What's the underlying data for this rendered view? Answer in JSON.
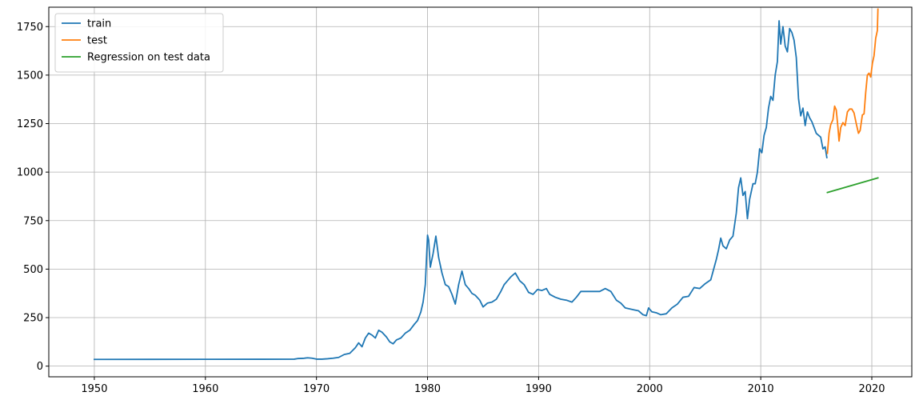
{
  "chart_data": {
    "type": "line",
    "title": "",
    "xlabel": "",
    "ylabel": "",
    "xlim": [
      1945.9,
      2023.6
    ],
    "ylim": [
      -55,
      1850
    ],
    "grid": true,
    "legend_position": "top-left",
    "x_ticks": [
      1950,
      1960,
      1970,
      1980,
      1990,
      2000,
      2010,
      2020
    ],
    "y_ticks": [
      0,
      250,
      500,
      750,
      1000,
      1250,
      1500,
      1750
    ],
    "series": [
      {
        "name": "train",
        "color": "#1f77b4",
        "points": [
          [
            1950.0,
            34.7
          ],
          [
            1955.0,
            35.0
          ],
          [
            1960.0,
            35.3
          ],
          [
            1965.0,
            35.5
          ],
          [
            1968.0,
            36.0
          ],
          [
            1968.3,
            39
          ],
          [
            1968.8,
            40
          ],
          [
            1969.2,
            43
          ],
          [
            1969.6,
            41
          ],
          [
            1970.0,
            36
          ],
          [
            1970.5,
            36
          ],
          [
            1971.0,
            38
          ],
          [
            1971.5,
            41
          ],
          [
            1972.0,
            45
          ],
          [
            1972.5,
            60
          ],
          [
            1973.0,
            66
          ],
          [
            1973.5,
            95
          ],
          [
            1973.8,
            120
          ],
          [
            1974.1,
            100
          ],
          [
            1974.4,
            145
          ],
          [
            1974.7,
            170
          ],
          [
            1975.0,
            160
          ],
          [
            1975.3,
            145
          ],
          [
            1975.6,
            185
          ],
          [
            1975.9,
            175
          ],
          [
            1976.3,
            150
          ],
          [
            1976.6,
            125
          ],
          [
            1976.9,
            115
          ],
          [
            1977.2,
            135
          ],
          [
            1977.6,
            145
          ],
          [
            1978.0,
            170
          ],
          [
            1978.4,
            185
          ],
          [
            1978.8,
            215
          ],
          [
            1979.1,
            235
          ],
          [
            1979.4,
            280
          ],
          [
            1979.6,
            330
          ],
          [
            1979.8,
            420
          ],
          [
            1980.0,
            675
          ],
          [
            1980.1,
            650
          ],
          [
            1980.25,
            510
          ],
          [
            1980.5,
            580
          ],
          [
            1980.75,
            670
          ],
          [
            1981.0,
            560
          ],
          [
            1981.3,
            480
          ],
          [
            1981.6,
            420
          ],
          [
            1981.9,
            410
          ],
          [
            1982.2,
            370
          ],
          [
            1982.5,
            320
          ],
          [
            1982.8,
            420
          ],
          [
            1983.1,
            490
          ],
          [
            1983.4,
            420
          ],
          [
            1983.7,
            400
          ],
          [
            1984.0,
            375
          ],
          [
            1984.3,
            365
          ],
          [
            1984.7,
            340
          ],
          [
            1985.0,
            305
          ],
          [
            1985.4,
            325
          ],
          [
            1985.8,
            330
          ],
          [
            1986.2,
            345
          ],
          [
            1986.6,
            385
          ],
          [
            1986.9,
            420
          ],
          [
            1987.2,
            440
          ],
          [
            1987.5,
            460
          ],
          [
            1987.9,
            480
          ],
          [
            1988.3,
            440
          ],
          [
            1988.7,
            420
          ],
          [
            1989.1,
            380
          ],
          [
            1989.5,
            370
          ],
          [
            1989.9,
            395
          ],
          [
            1990.3,
            390
          ],
          [
            1990.7,
            400
          ],
          [
            1991.0,
            370
          ],
          [
            1991.5,
            355
          ],
          [
            1992.0,
            345
          ],
          [
            1992.5,
            340
          ],
          [
            1993.0,
            330
          ],
          [
            1993.4,
            355
          ],
          [
            1993.8,
            385
          ],
          [
            1994.2,
            385
          ],
          [
            1994.6,
            385
          ],
          [
            1995.0,
            385
          ],
          [
            1995.5,
            385
          ],
          [
            1996.0,
            400
          ],
          [
            1996.5,
            385
          ],
          [
            1997.0,
            340
          ],
          [
            1997.4,
            325
          ],
          [
            1997.8,
            300
          ],
          [
            1998.2,
            295
          ],
          [
            1998.6,
            290
          ],
          [
            1999.0,
            285
          ],
          [
            1999.4,
            265
          ],
          [
            1999.7,
            260
          ],
          [
            1999.9,
            300
          ],
          [
            2000.2,
            280
          ],
          [
            2000.6,
            275
          ],
          [
            2001.0,
            265
          ],
          [
            2001.5,
            270
          ],
          [
            2002.0,
            300
          ],
          [
            2002.5,
            320
          ],
          [
            2003.0,
            355
          ],
          [
            2003.5,
            360
          ],
          [
            2004.0,
            405
          ],
          [
            2004.5,
            400
          ],
          [
            2005.0,
            425
          ],
          [
            2005.5,
            445
          ],
          [
            2006.0,
            550
          ],
          [
            2006.2,
            600
          ],
          [
            2006.4,
            660
          ],
          [
            2006.6,
            620
          ],
          [
            2006.9,
            605
          ],
          [
            2007.2,
            650
          ],
          [
            2007.5,
            670
          ],
          [
            2007.8,
            790
          ],
          [
            2008.0,
            920
          ],
          [
            2008.2,
            970
          ],
          [
            2008.4,
            880
          ],
          [
            2008.6,
            900
          ],
          [
            2008.8,
            760
          ],
          [
            2009.0,
            860
          ],
          [
            2009.3,
            940
          ],
          [
            2009.5,
            940
          ],
          [
            2009.7,
            1000
          ],
          [
            2009.9,
            1120
          ],
          [
            2010.1,
            1100
          ],
          [
            2010.3,
            1190
          ],
          [
            2010.5,
            1230
          ],
          [
            2010.7,
            1330
          ],
          [
            2010.9,
            1390
          ],
          [
            2011.1,
            1370
          ],
          [
            2011.3,
            1500
          ],
          [
            2011.5,
            1570
          ],
          [
            2011.65,
            1780
          ],
          [
            2011.8,
            1660
          ],
          [
            2012.0,
            1750
          ],
          [
            2012.2,
            1650
          ],
          [
            2012.4,
            1620
          ],
          [
            2012.6,
            1740
          ],
          [
            2012.8,
            1720
          ],
          [
            2013.0,
            1680
          ],
          [
            2013.2,
            1590
          ],
          [
            2013.4,
            1380
          ],
          [
            2013.6,
            1290
          ],
          [
            2013.8,
            1330
          ],
          [
            2014.0,
            1240
          ],
          [
            2014.2,
            1310
          ],
          [
            2014.4,
            1280
          ],
          [
            2014.6,
            1260
          ],
          [
            2014.8,
            1230
          ],
          [
            2015.0,
            1200
          ],
          [
            2015.2,
            1190
          ],
          [
            2015.4,
            1180
          ],
          [
            2015.6,
            1120
          ],
          [
            2015.8,
            1130
          ],
          [
            2015.95,
            1075
          ]
        ]
      },
      {
        "name": "test",
        "color": "#ff7f0e",
        "points": [
          [
            2016.0,
            1097
          ],
          [
            2016.15,
            1200
          ],
          [
            2016.3,
            1245
          ],
          [
            2016.5,
            1270
          ],
          [
            2016.65,
            1340
          ],
          [
            2016.8,
            1320
          ],
          [
            2016.95,
            1230
          ],
          [
            2017.05,
            1160
          ],
          [
            2017.2,
            1230
          ],
          [
            2017.4,
            1255
          ],
          [
            2017.6,
            1240
          ],
          [
            2017.8,
            1310
          ],
          [
            2018.0,
            1325
          ],
          [
            2018.2,
            1325
          ],
          [
            2018.4,
            1305
          ],
          [
            2018.6,
            1250
          ],
          [
            2018.8,
            1200
          ],
          [
            2018.95,
            1215
          ],
          [
            2019.15,
            1295
          ],
          [
            2019.3,
            1300
          ],
          [
            2019.45,
            1410
          ],
          [
            2019.6,
            1500
          ],
          [
            2019.75,
            1510
          ],
          [
            2019.9,
            1490
          ],
          [
            2020.05,
            1560
          ],
          [
            2020.2,
            1600
          ],
          [
            2020.35,
            1690
          ],
          [
            2020.5,
            1730
          ],
          [
            2020.55,
            1840
          ]
        ]
      },
      {
        "name": "Regression on test data",
        "color": "#2ca02c",
        "points": [
          [
            2016.0,
            895
          ],
          [
            2020.55,
            970
          ]
        ]
      }
    ]
  }
}
